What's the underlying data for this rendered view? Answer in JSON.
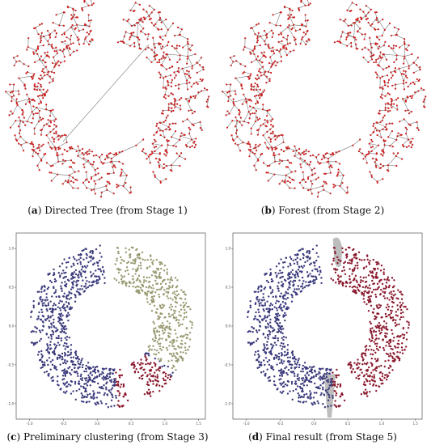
{
  "figure": {
    "panels": [
      {
        "letter": "a",
        "caption": "Directed Tree (from Stage 1)"
      },
      {
        "letter": "b",
        "caption": "Forest (from Stage 2)"
      },
      {
        "letter": "c",
        "caption": "Preliminary clustering (from Stage 3)"
      },
      {
        "letter": "d",
        "caption": "Final result (from Stage 5)"
      }
    ]
  },
  "colors": {
    "tree_node": "#cc1f1f",
    "tree_edge": "#777777",
    "cluster_blue": "#3a3a7c",
    "cluster_olive": "#9a9a72",
    "cluster_red": "#8a1a2e",
    "highlight_gray": "#bdbdbd"
  },
  "chart_data": [
    {
      "type": "scatter",
      "panel": "c",
      "x_ticks": [
        "-1.0",
        "-0.5",
        "0.0",
        "0.5",
        "1.0",
        "1.5"
      ],
      "y_ticks": [
        "1.0",
        "0.5",
        "0.0",
        "-0.5",
        "-1.0"
      ],
      "xlim": [
        -1.2,
        1.6
      ],
      "ylim": [
        -1.2,
        1.2
      ],
      "series": [
        {
          "cluster": "blue",
          "theta_range_deg": [
            95,
            275
          ]
        },
        {
          "cluster": "olive",
          "theta_range_deg": [
            -35,
            92
          ]
        },
        {
          "cluster": "red",
          "theta_range_deg": [
            -88,
            -40
          ]
        }
      ]
    },
    {
      "type": "scatter",
      "panel": "d",
      "x_ticks": [
        "-1.0",
        "-0.5",
        "0.0",
        "0.5",
        "1.0",
        "1.5"
      ],
      "y_ticks": [
        "1.0",
        "0.5",
        "0.0",
        "-0.5",
        "-1.0"
      ],
      "xlim": [
        -1.2,
        1.6
      ],
      "ylim": [
        -1.2,
        1.2
      ],
      "series": [
        {
          "cluster": "blue",
          "theta_range_deg": [
            95,
            275
          ]
        },
        {
          "cluster": "red",
          "theta_range_deg": [
            -88,
            92
          ]
        }
      ]
    }
  ]
}
